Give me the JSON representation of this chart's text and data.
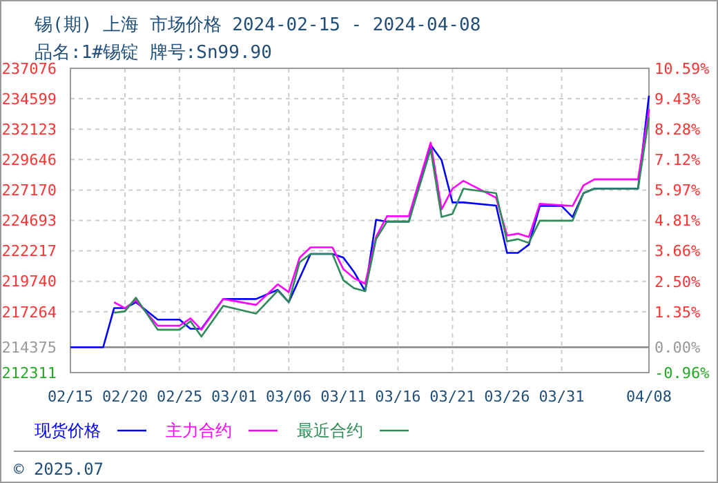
{
  "chart_data": {
    "type": "line",
    "title": "锡(期) 上海 市场价格 2024-02-15 - 2024-04-08",
    "subtitle": "品名:1#锡锭 牌号:Sn99.90",
    "xlim": [
      "2024-02-15",
      "2024-04-08"
    ],
    "xticks": [
      {
        "value": "2024-02-15",
        "label": "02/15"
      },
      {
        "value": "2024-02-20",
        "label": "02/20"
      },
      {
        "value": "2024-02-25",
        "label": "02/25"
      },
      {
        "value": "2024-03-01",
        "label": "03/01"
      },
      {
        "value": "2024-03-06",
        "label": "03/06"
      },
      {
        "value": "2024-03-11",
        "label": "03/11"
      },
      {
        "value": "2024-03-16",
        "label": "03/16"
      },
      {
        "value": "2024-03-21",
        "label": "03/21"
      },
      {
        "value": "2024-03-26",
        "label": "03/26"
      },
      {
        "value": "2024-03-31",
        "label": "03/31"
      },
      {
        "value": "2024-04-08",
        "label": "04/08"
      }
    ],
    "ylim": [
      212311,
      237076
    ],
    "yticks": [
      212311,
      214375,
      217264,
      219740,
      222217,
      224693,
      227170,
      229646,
      232123,
      234599,
      237076
    ],
    "y2lim": [
      -0.96,
      10.59
    ],
    "y2ticks": [
      {
        "value": -0.96,
        "label": "-0.96%"
      },
      {
        "value": 0,
        "label": "0.00%"
      },
      {
        "value": 1.35,
        "label": "1.35%"
      },
      {
        "value": 2.5,
        "label": "2.50%"
      },
      {
        "value": 3.66,
        "label": "3.66%"
      },
      {
        "value": 4.81,
        "label": "4.81%"
      },
      {
        "value": 5.97,
        "label": "5.97%"
      },
      {
        "value": 7.12,
        "label": "7.12%"
      },
      {
        "value": 8.28,
        "label": "8.28%"
      },
      {
        "value": 9.43,
        "label": "9.43%"
      },
      {
        "value": 10.59,
        "label": "10.59%"
      }
    ],
    "ref_lines": [
      {
        "axis": "y",
        "value": 214375,
        "color": "#888888"
      }
    ],
    "grid": true,
    "legend": "bottom",
    "line_style": "solid",
    "marker": "none",
    "series": [
      {
        "name": "现货价格",
        "color": "#0000ff",
        "x": [
          "2024-02-15",
          "2024-02-18",
          "2024-02-19",
          "2024-02-20",
          "2024-02-21",
          "2024-02-23",
          "2024-02-25",
          "2024-02-26",
          "2024-02-27",
          "2024-02-29",
          "2024-03-03",
          "2024-03-04",
          "2024-03-05",
          "2024-03-06",
          "2024-03-08",
          "2024-03-10",
          "2024-03-11",
          "2024-03-12",
          "2024-03-13",
          "2024-03-14",
          "2024-03-15",
          "2024-03-17",
          "2024-03-19",
          "2024-03-20",
          "2024-03-21",
          "2024-03-22",
          "2024-03-25",
          "2024-03-26",
          "2024-03-27",
          "2024-03-28",
          "2024-03-29",
          "2024-03-31",
          "2024-04-01",
          "2024-04-02",
          "2024-04-03",
          "2024-04-07",
          "2024-04-08"
        ],
        "values": [
          214375,
          214375,
          217560,
          217560,
          218040,
          216620,
          216620,
          215880,
          215880,
          218300,
          218300,
          218680,
          219050,
          218040,
          221970,
          221970,
          221670,
          220480,
          218940,
          224750,
          224600,
          224600,
          230840,
          229610,
          226160,
          226160,
          225900,
          222050,
          222050,
          222720,
          225870,
          225870,
          224970,
          226910,
          227290,
          227290,
          234850
        ]
      },
      {
        "name": "主力合约",
        "color": "#ff00ff",
        "x": [
          "2024-02-19",
          "2024-02-20",
          "2024-02-21",
          "2024-02-23",
          "2024-02-25",
          "2024-02-26",
          "2024-02-27",
          "2024-02-29",
          "2024-03-03",
          "2024-03-05",
          "2024-03-06",
          "2024-03-07",
          "2024-03-08",
          "2024-03-10",
          "2024-03-11",
          "2024-03-12",
          "2024-03-13",
          "2024-03-14",
          "2024-03-15",
          "2024-03-17",
          "2024-03-19",
          "2024-03-20",
          "2024-03-21",
          "2024-03-22",
          "2024-03-25",
          "2024-03-26",
          "2024-03-27",
          "2024-03-28",
          "2024-03-29",
          "2024-04-01",
          "2024-04-02",
          "2024-04-03",
          "2024-04-07",
          "2024-04-08"
        ],
        "values": [
          218040,
          217560,
          218190,
          216130,
          216130,
          216730,
          215800,
          218300,
          217820,
          219500,
          218860,
          221670,
          222500,
          222500,
          220740,
          219990,
          219540,
          223350,
          225040,
          225040,
          231030,
          225600,
          227280,
          227920,
          226540,
          223470,
          223620,
          223350,
          226050,
          225870,
          227550,
          228040,
          228040,
          233730
        ]
      },
      {
        "name": "最近合约",
        "color": "#2e8b57",
        "x": [
          "2024-02-19",
          "2024-02-20",
          "2024-02-21",
          "2024-02-23",
          "2024-02-25",
          "2024-02-26",
          "2024-02-27",
          "2024-02-29",
          "2024-03-03",
          "2024-03-05",
          "2024-03-06",
          "2024-03-07",
          "2024-03-08",
          "2024-03-10",
          "2024-03-11",
          "2024-03-12",
          "2024-03-13",
          "2024-03-14",
          "2024-03-15",
          "2024-03-17",
          "2024-03-19",
          "2024-03-20",
          "2024-03-21",
          "2024-03-22",
          "2024-03-25",
          "2024-03-26",
          "2024-03-27",
          "2024-03-28",
          "2024-03-29",
          "2024-04-01",
          "2024-04-02",
          "2024-04-03",
          "2024-04-07",
          "2024-04-08"
        ],
        "values": [
          217180,
          217300,
          218410,
          215800,
          215800,
          216500,
          215240,
          217740,
          217110,
          218980,
          218040,
          221300,
          221970,
          221970,
          219830,
          219170,
          218940,
          223170,
          224600,
          224600,
          230470,
          224970,
          225230,
          227280,
          226910,
          222990,
          223170,
          222870,
          224670,
          224670,
          226910,
          227280,
          227280,
          233090
        ]
      }
    ],
    "annotations": [
      "© 2025.07"
    ]
  }
}
